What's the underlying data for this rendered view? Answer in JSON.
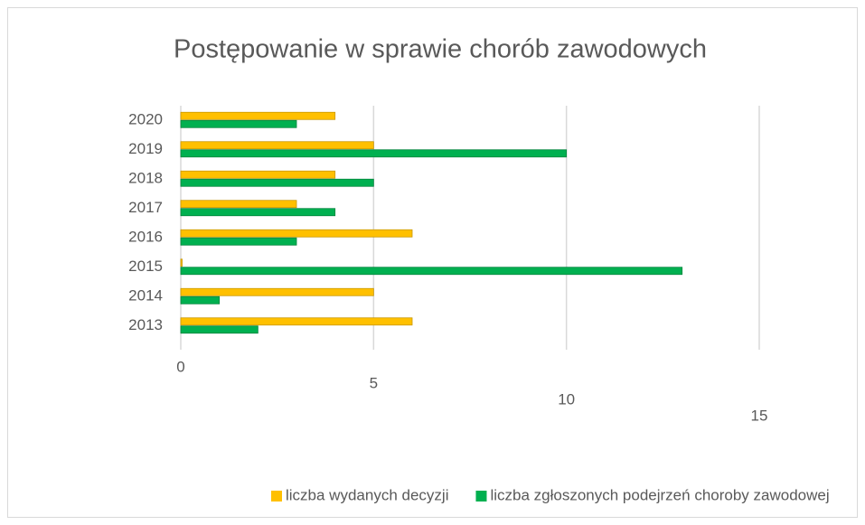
{
  "chart_data": {
    "type": "bar",
    "orientation": "horizontal",
    "title": "Postępowanie w sprawie chorób zawodowych",
    "categories": [
      "2020",
      "2019",
      "2018",
      "2017",
      "2016",
      "2015",
      "2014",
      "2013"
    ],
    "series": [
      {
        "name": "liczba wydanych decyzji",
        "color": "#ffc000",
        "values": [
          4,
          5,
          4,
          3,
          6,
          0,
          5,
          6
        ]
      },
      {
        "name": "liczba zgłoszonych podejrzeń choroby zawodowej",
        "color": "#00b050",
        "values": [
          3,
          10,
          5,
          4,
          3,
          13,
          1,
          2
        ]
      }
    ],
    "xlim": [
      0,
      15
    ],
    "xticks": [
      0,
      5,
      10,
      15
    ],
    "grid": true,
    "legend": "bottom"
  }
}
